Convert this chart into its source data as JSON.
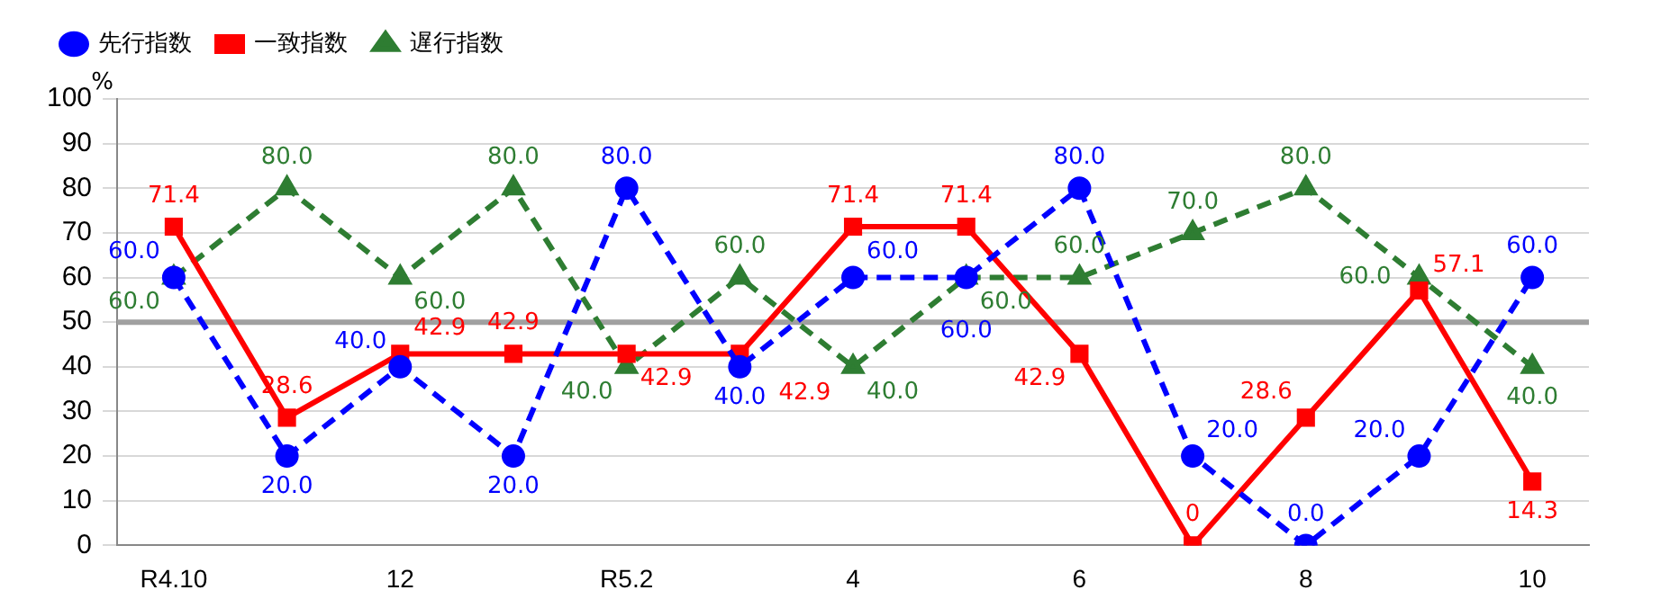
{
  "chart_data": {
    "type": "line",
    "ylabel": "%",
    "categories": [
      "R4.10",
      null,
      "12",
      null,
      "R5.2",
      null,
      "4",
      null,
      "6",
      null,
      "8",
      null,
      "10"
    ],
    "series": [
      {
        "name": "先行指数",
        "color": "#0000ff",
        "marker": "circle",
        "line_style": "dashed",
        "values": [
          60.0,
          20.0,
          40.0,
          20.0,
          80.0,
          40.0,
          60.0,
          60.0,
          80.0,
          20.0,
          0.0,
          20.0,
          60.0
        ],
        "value_labels": [
          "60.0",
          "20.0",
          "40.0",
          "20.0",
          "80.0",
          "40.0",
          "60.0",
          "60.0",
          "80.0",
          "20.0",
          "0.0",
          "20.0",
          "60.0"
        ]
      },
      {
        "name": "一致指数",
        "color": "#ff0000",
        "marker": "square",
        "line_style": "solid",
        "values": [
          71.4,
          28.6,
          42.9,
          42.9,
          42.9,
          42.9,
          71.4,
          71.4,
          42.9,
          0,
          28.6,
          57.1,
          14.3
        ],
        "value_labels": [
          "71.4",
          "28.6",
          "42.9",
          "42.9",
          "42.9",
          "42.9",
          "71.4",
          "71.4",
          "42.9",
          "0",
          "28.6",
          "57.1",
          "14.3"
        ]
      },
      {
        "name": "遅行指数",
        "color": "#2e7d32",
        "marker": "triangle",
        "line_style": "dashed",
        "values": [
          60.0,
          80.0,
          60.0,
          80.0,
          40.0,
          60.0,
          40.0,
          60.0,
          60.0,
          70.0,
          80.0,
          60.0,
          40.0
        ],
        "value_labels": [
          "60.0",
          "80.0",
          "60.0",
          "80.0",
          "40.0",
          "60.0",
          "40.0",
          "60.0",
          "60.0",
          "70.0",
          "80.0",
          "60.0",
          "40.0"
        ]
      }
    ],
    "ylim": [
      0,
      100
    ],
    "yticks": [
      0,
      10,
      20,
      30,
      40,
      50,
      60,
      70,
      80,
      90,
      100
    ],
    "grid": "y",
    "legend": "top left",
    "ref_lines": [
      {
        "axis": "y",
        "value": 50,
        "color": "#a0a0a0"
      }
    ]
  }
}
